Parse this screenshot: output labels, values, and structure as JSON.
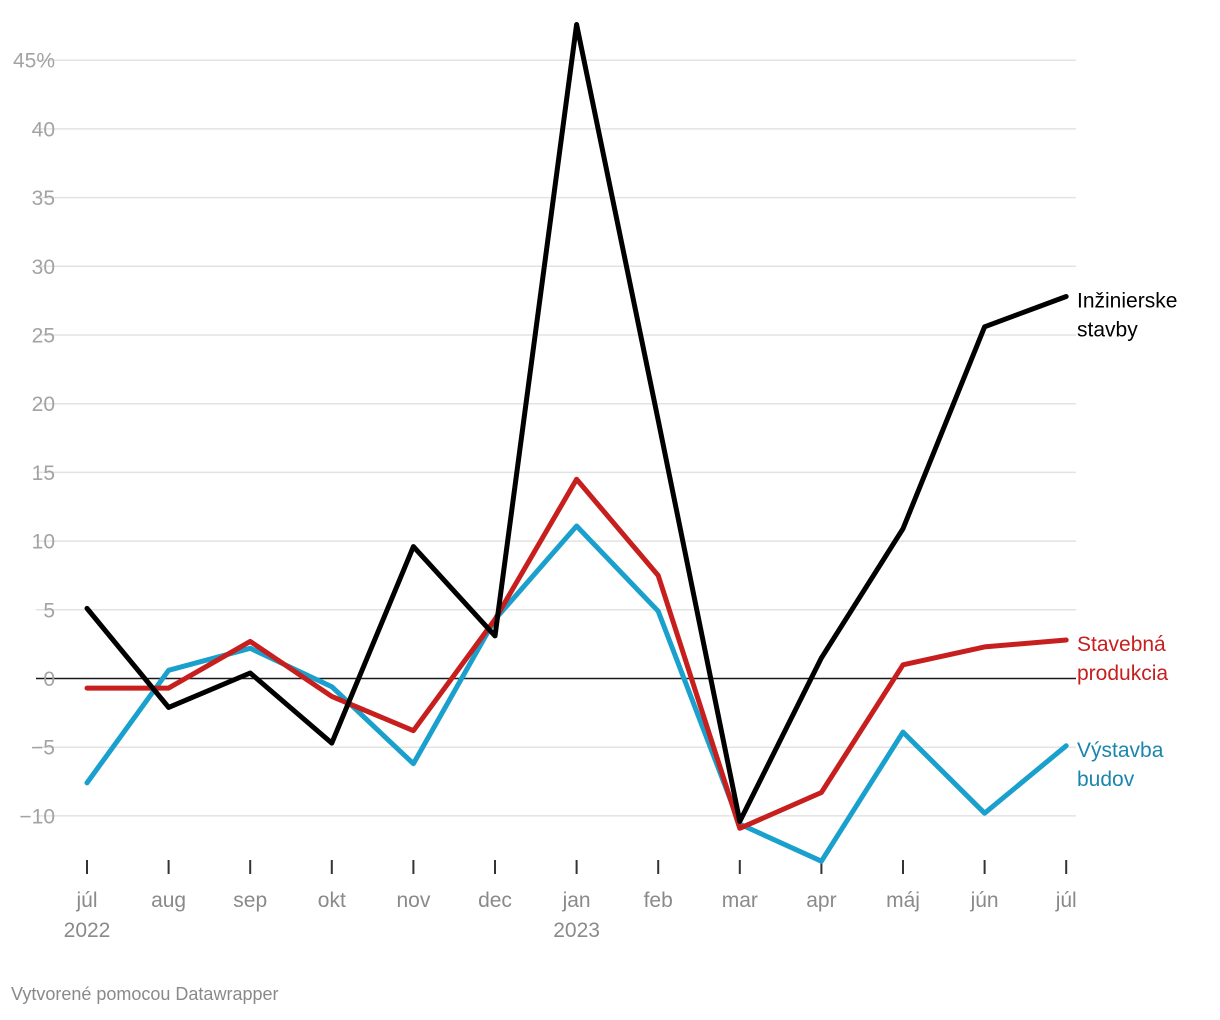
{
  "chart_data": {
    "type": "line",
    "title": "",
    "xlabel": "",
    "ylabel": "",
    "ylim": [
      -13.5,
      48
    ],
    "y_ticks": [
      -10,
      -5,
      0,
      5,
      10,
      15,
      20,
      25,
      30,
      35,
      40,
      45
    ],
    "y_tick_labels": [
      "−10",
      "−5",
      "0",
      "5",
      "10",
      "15",
      "20",
      "25",
      "30",
      "35",
      "40",
      "45%"
    ],
    "categories": [
      "júl",
      "aug",
      "sep",
      "okt",
      "nov",
      "dec",
      "jan",
      "feb",
      "mar",
      "apr",
      "máj",
      "jún",
      "júl"
    ],
    "year_labels": [
      "2022",
      "",
      "",
      "",
      "",
      "",
      "2023",
      "",
      "",
      "",
      "",
      "",
      ""
    ],
    "grid": true,
    "legend": "direct labels at right end of lines",
    "series": [
      {
        "name": "Výstavba budov",
        "label_lines": [
          "Výstavba",
          "budov"
        ],
        "color": "#1aa0cc",
        "label_color": "#1a86ad",
        "values": [
          -7.6,
          0.6,
          2.2,
          -0.6,
          -6.2,
          4.3,
          11.1,
          4.9,
          -10.6,
          -13.3,
          -3.9,
          -9.8,
          -4.9
        ]
      },
      {
        "name": "Stavebná produkcia",
        "label_lines": [
          "Stavebná",
          "produkcia"
        ],
        "color": "#c71e1e",
        "label_color": "#c71e1e",
        "values": [
          -0.7,
          -0.7,
          2.7,
          -1.3,
          -3.8,
          4.3,
          14.5,
          7.5,
          -10.9,
          -8.3,
          1.0,
          2.3,
          2.8
        ]
      },
      {
        "name": "Inžinierske stavby",
        "label_lines": [
          "Inžinierske",
          "stavby"
        ],
        "color": "#000000",
        "label_color": "#000000",
        "values": [
          5.1,
          -2.1,
          0.4,
          -4.7,
          9.6,
          3.1,
          47.6,
          18.8,
          -10.4,
          1.5,
          10.9,
          25.6,
          27.8
        ]
      }
    ]
  },
  "credit": "Vytvorené pomocou Datawrapper"
}
